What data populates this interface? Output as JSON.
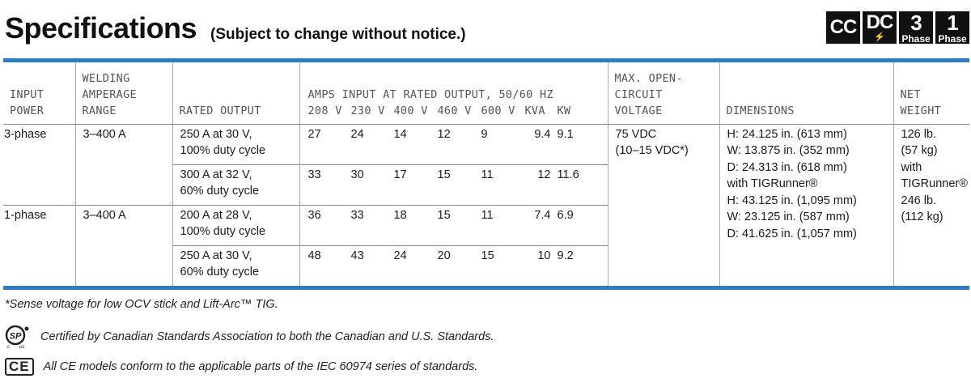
{
  "header": {
    "title": "Specifications",
    "subtitle": "(Subject to change without notice.)",
    "badges": [
      {
        "big": "CC",
        "small": ""
      },
      {
        "big": "DC",
        "small": "⚡"
      },
      {
        "big": "3",
        "small": "Phase"
      },
      {
        "big": "1",
        "small": "Phase"
      }
    ]
  },
  "columns": {
    "input_power": "INPUT\nPOWER",
    "welding_range": "WELDING\nAMPERAGE\nRANGE",
    "rated_output": "RATED OUTPUT",
    "amps_title": "AMPS INPUT AT RATED OUTPUT, 50/60 HZ",
    "amps_sub": [
      "208 V",
      "230 V",
      "400 V",
      "460 V",
      "600 V",
      "KVA",
      "KW"
    ],
    "ocv": "MAX. OPEN-\nCIRCUIT\nVOLTAGE",
    "dimensions": "DIMENSIONS",
    "weight": "NET\nWEIGHT"
  },
  "rows": [
    {
      "power": "3-phase",
      "range": "3–400 A",
      "output": "250 A at 30 V,\n100% duty cycle",
      "values": [
        "27",
        "24",
        "14",
        "12",
        "9",
        "9.4",
        "9.1"
      ]
    },
    {
      "power": "",
      "range": "",
      "output": "300 A at 32 V,\n60% duty cycle",
      "values": [
        "33",
        "30",
        "17",
        "15",
        "11",
        "12",
        "11.6"
      ]
    },
    {
      "power": "1-phase",
      "range": "3–400 A",
      "output": "200 A at 28 V,\n100% duty cycle",
      "values": [
        "36",
        "33",
        "18",
        "15",
        "11",
        "7.4",
        "6.9"
      ]
    },
    {
      "power": "",
      "range": "",
      "output": "250 A at 30 V,\n60% duty cycle",
      "values": [
        "48",
        "43",
        "24",
        "20",
        "15",
        "10",
        "9.2"
      ]
    }
  ],
  "ocv_value": "75 VDC\n(10–15 VDC*)",
  "dimensions_value": "H:  24.125 in. (613 mm)\nW:  13.875 in. (352 mm)\nD:  24.313 in. (618 mm)\nwith TIGRunner®\nH:  43.125 in. (1,095 mm)\nW:  23.125 in. (587 mm)\nD:  41.625 in. (1,057 mm)",
  "weight_value": "126 lb.\n(57 kg)\nwith\nTIGRunner®\n246 lb.\n(112 kg)",
  "notes": {
    "footnote": "*Sense voltage for low OCV stick and Lift-Arc™ TIG.",
    "csa_text": "Certified by Canadian Standards Association to both the Canadian and U.S. Standards.",
    "ce_mark": "CE",
    "ce_text": "All CE models conform to the applicable parts of the IEC 60974 series of standards."
  },
  "colors": {
    "accent": "#2d7cc4",
    "text": "#1a1a1a",
    "header_text": "#555555"
  }
}
